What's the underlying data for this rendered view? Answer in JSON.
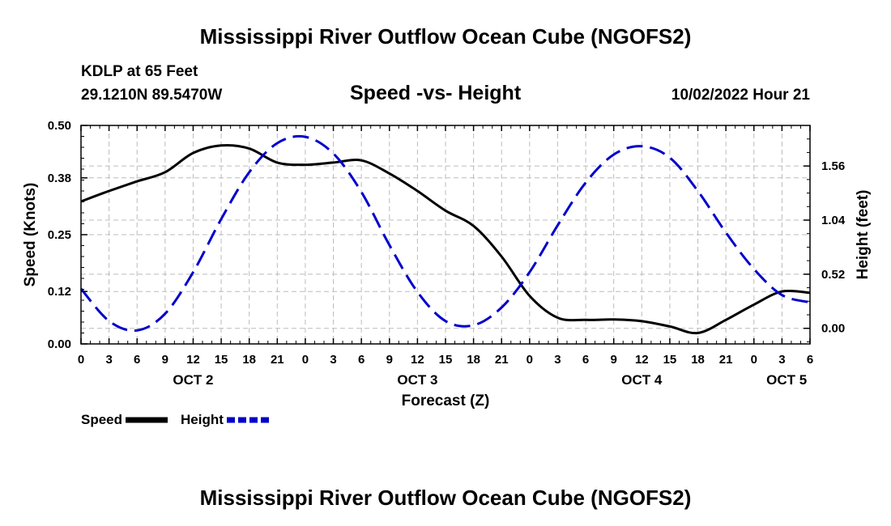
{
  "titles": {
    "main": "Mississippi River Outflow Ocean Cube (NGOFS2)",
    "repeat": "Mississippi River Outflow Ocean Cube (NGOFS2)"
  },
  "station": {
    "name": "KDLP at 65 Feet",
    "coords": "29.1210N  89.5470W",
    "datetime": "10/02/2022 Hour 21"
  },
  "legend": {
    "speed_label": "Speed",
    "height_label": "Height"
  },
  "colors": {
    "speed": "#000000",
    "height": "#0000cc",
    "grid": "#bbbbbb"
  },
  "chart_data": {
    "type": "line",
    "title": "Speed -vs- Height",
    "xlabel": "Forecast (Z)",
    "ylabel": "Speed (Knots)",
    "y2label": "Height (feet)",
    "x_range_hours": [
      0,
      78
    ],
    "ylim": [
      0.0,
      0.5
    ],
    "y2lim": [
      -0.15,
      1.95
    ],
    "x_tick_hours": [
      0,
      3,
      6,
      9,
      12,
      15,
      18,
      21,
      24,
      27,
      30,
      33,
      36,
      39,
      42,
      45,
      48,
      51,
      54,
      57,
      60,
      63,
      66,
      69,
      72,
      75,
      78
    ],
    "x_tick_labels": [
      "0",
      "3",
      "6",
      "9",
      "12",
      "15",
      "18",
      "21",
      "0",
      "3",
      "6",
      "9",
      "12",
      "15",
      "18",
      "21",
      "0",
      "3",
      "6",
      "9",
      "12",
      "15",
      "18",
      "21",
      "0",
      "3",
      "6"
    ],
    "y_ticks": [
      0.0,
      0.12,
      0.25,
      0.38,
      0.5
    ],
    "y_tick_labels": [
      "0.00",
      "0.12",
      "0.25",
      "0.38",
      "0.50"
    ],
    "y2_ticks": [
      0.0,
      0.52,
      1.04,
      1.56
    ],
    "y2_tick_labels": [
      "0.00",
      "0.52",
      "1.04",
      "1.56"
    ],
    "day_labels": [
      {
        "label": "OCT 2",
        "hour": 12
      },
      {
        "label": "OCT 3",
        "hour": 36
      },
      {
        "label": "OCT 4",
        "hour": 60
      },
      {
        "label": "OCT 5",
        "hour": 75.5
      }
    ],
    "series": [
      {
        "name": "Speed",
        "axis": "left",
        "style": "solid",
        "x": [
          0,
          3,
          6,
          9,
          12,
          15,
          18,
          21,
          24,
          27,
          30,
          33,
          36,
          39,
          42,
          45,
          48,
          51,
          54,
          57,
          60,
          63,
          66,
          69,
          72,
          75,
          78
        ],
        "values": [
          0.326,
          0.35,
          0.372,
          0.393,
          0.437,
          0.454,
          0.447,
          0.415,
          0.41,
          0.415,
          0.42,
          0.39,
          0.35,
          0.305,
          0.27,
          0.2,
          0.11,
          0.06,
          0.055,
          0.056,
          0.052,
          0.04,
          0.025,
          0.055,
          0.09,
          0.12,
          0.117
        ]
      },
      {
        "name": "Height",
        "axis": "right",
        "style": "dashed",
        "x": [
          0,
          3,
          6,
          9,
          12,
          15,
          18,
          21,
          24,
          27,
          30,
          33,
          36,
          39,
          42,
          45,
          48,
          51,
          54,
          57,
          60,
          63,
          66,
          69,
          72,
          75,
          78
        ],
        "values": [
          0.38,
          0.07,
          -0.02,
          0.14,
          0.54,
          1.05,
          1.5,
          1.78,
          1.84,
          1.68,
          1.31,
          0.8,
          0.35,
          0.07,
          0.03,
          0.2,
          0.54,
          0.99,
          1.4,
          1.67,
          1.75,
          1.64,
          1.32,
          0.92,
          0.57,
          0.32,
          0.25
        ]
      }
    ]
  }
}
